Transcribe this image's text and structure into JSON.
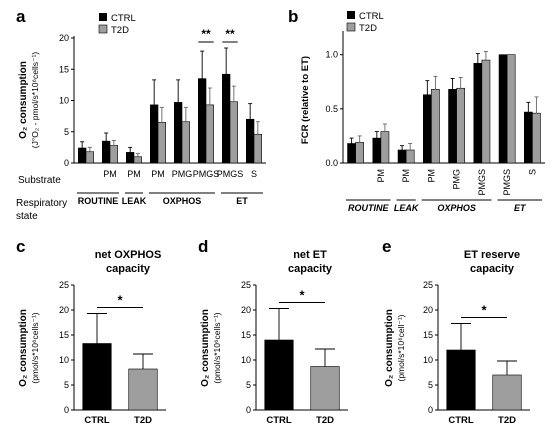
{
  "colors": {
    "ctrl": "#000000",
    "t2d": "#9e9e9e"
  },
  "legend": {
    "ctrl": "CTRL",
    "t2d": "T2D"
  },
  "rows": {
    "substrate": "Substrate",
    "resp_line1": "Respiratory",
    "resp_line2": "state"
  },
  "chart_data": [
    {
      "panel": "a",
      "type": "bar",
      "ylabel_main": "O₂ consumption",
      "ylabel_sub": "(J°O₂ - pmol/s*10⁶cells⁻¹)",
      "ylim": [
        0,
        20
      ],
      "yticks": [
        0,
        5,
        10,
        15,
        20
      ],
      "categories": [
        "",
        "PM",
        "PM",
        "PM",
        "PMG",
        "PMGS",
        "PMGS",
        "S"
      ],
      "groups": [
        {
          "label": "ROUTINE",
          "from": 0,
          "to": 1
        },
        {
          "label": "LEAK",
          "from": 2,
          "to": 2
        },
        {
          "label": "OXPHOS",
          "from": 3,
          "to": 5
        },
        {
          "label": "ET",
          "from": 6,
          "to": 7
        }
      ],
      "series": [
        {
          "name": "CTRL",
          "values": [
            2.4,
            3.5,
            1.7,
            9.3,
            9.7,
            13.5,
            14.2,
            7.0
          ],
          "errors": [
            1.0,
            1.3,
            0.8,
            4.0,
            3.6,
            4.4,
            4.2,
            2.5
          ]
        },
        {
          "name": "T2D",
          "values": [
            1.8,
            2.8,
            1.0,
            6.5,
            6.6,
            9.3,
            9.8,
            4.6
          ],
          "errors": [
            0.7,
            0.8,
            0.5,
            2.4,
            2.3,
            2.7,
            2.5,
            2.0
          ]
        }
      ],
      "significance": [
        {
          "index": 5,
          "text": "**"
        },
        {
          "index": 6,
          "text": "**"
        }
      ],
      "legend": "top-left"
    },
    {
      "panel": "b",
      "type": "bar",
      "ylabel": "FCR (relative to ET)",
      "ylim": [
        0,
        1.2
      ],
      "yticks": [
        "0.0",
        "0.5",
        "1.0"
      ],
      "categories": [
        "",
        "PM",
        "PM",
        "PM",
        "PMG",
        "PMGS",
        "PMGS",
        "S"
      ],
      "groups": [
        {
          "label": "ROUTINE",
          "from": 0,
          "to": 1
        },
        {
          "label": "LEAK",
          "from": 2,
          "to": 2
        },
        {
          "label": "OXPHOS",
          "from": 3,
          "to": 5
        },
        {
          "label": "ET",
          "from": 6,
          "to": 7
        }
      ],
      "series": [
        {
          "name": "CTRL",
          "values": [
            0.18,
            0.23,
            0.12,
            0.63,
            0.68,
            0.92,
            1.0,
            0.47
          ],
          "errors": [
            0.05,
            0.06,
            0.04,
            0.13,
            0.1,
            0.09,
            0.0,
            0.09
          ]
        },
        {
          "name": "T2D",
          "values": [
            0.19,
            0.29,
            0.12,
            0.68,
            0.69,
            0.95,
            1.0,
            0.46
          ],
          "errors": [
            0.06,
            0.07,
            0.06,
            0.12,
            0.1,
            0.08,
            0.0,
            0.15
          ]
        }
      ],
      "legend": "top-left"
    },
    {
      "panel": "c",
      "type": "bar",
      "title_line1": "net OXPHOS",
      "title_line2": "capacity",
      "ylabel_main": "O₂ consumption",
      "ylabel_sub": "(pmol/s*10⁶cells⁻¹)",
      "ylim": [
        0,
        25
      ],
      "yticks": [
        0,
        5,
        10,
        15,
        20,
        25
      ],
      "categories": [
        "CTRL",
        "T2D"
      ],
      "values": [
        13.3,
        8.2
      ],
      "errors": [
        6.0,
        3.0
      ],
      "significance": "*"
    },
    {
      "panel": "d",
      "type": "bar",
      "title_line1": "net ET",
      "title_line2": "capacity",
      "ylabel_main": "O₂ consumption",
      "ylabel_sub": "(pmol/s*10⁶cells⁻¹)",
      "ylim": [
        0,
        25
      ],
      "yticks": [
        0,
        5,
        10,
        15,
        20,
        25
      ],
      "categories": [
        "CTRL",
        "T2D"
      ],
      "values": [
        14.0,
        8.7
      ],
      "errors": [
        6.3,
        3.5
      ],
      "significance": "*"
    },
    {
      "panel": "e",
      "type": "bar",
      "title_line1": "ET reserve",
      "title_line2": "capacity",
      "ylabel_main": "O₂ consumption",
      "ylabel_sub": "(pmol/s*10⁶cell⁻¹)",
      "ylim": [
        0,
        25
      ],
      "yticks": [
        0,
        5,
        10,
        15,
        20,
        25
      ],
      "categories": [
        "CTRL",
        "T2D"
      ],
      "values": [
        12.0,
        7.0
      ],
      "errors": [
        5.3,
        2.8
      ],
      "significance": "*"
    }
  ]
}
